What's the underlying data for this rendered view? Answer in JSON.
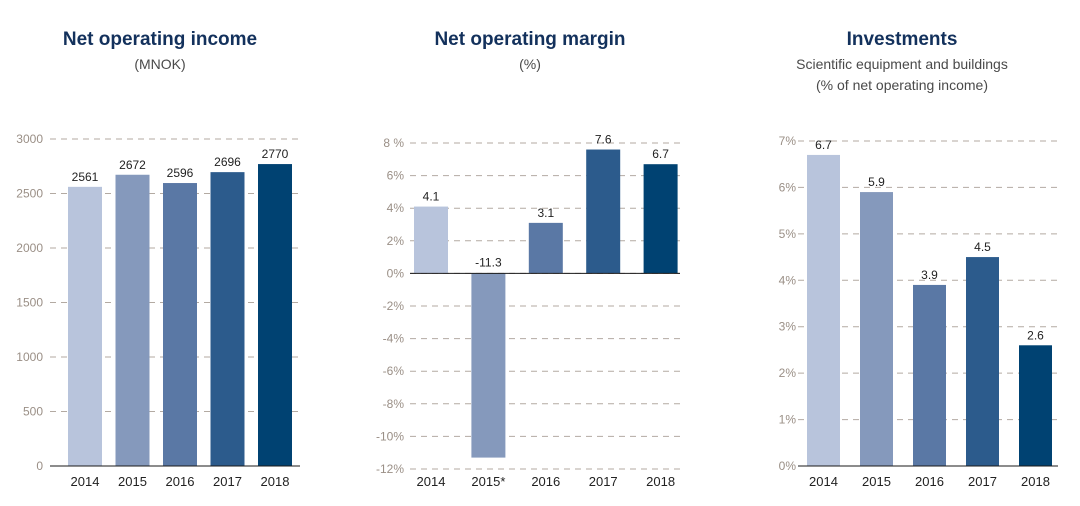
{
  "colors": {
    "year_2014": "#b8c4dc",
    "year_2015": "#8599bc",
    "year_2016": "#5a78a5",
    "year_2017": "#2c5b8c",
    "year_2018": "#004272",
    "grid": "#b3aaa2",
    "title": "#13315c"
  },
  "chart_data": [
    {
      "type": "bar",
      "title": "Net operating income",
      "subtitle": "(MNOK)",
      "categories": [
        "2014",
        "2015",
        "2016",
        "2017",
        "2018"
      ],
      "values": [
        2561,
        2672,
        2596,
        2696,
        2770
      ],
      "value_labels": [
        "2561",
        "2672",
        "2596",
        "2696",
        "2770"
      ],
      "ylim": [
        0,
        3000
      ],
      "yticks": [
        0,
        500,
        1000,
        1500,
        2000,
        2500,
        3000
      ],
      "ytick_labels": [
        "0",
        "500",
        "1000",
        "1500",
        "2000",
        "2500",
        "3000"
      ],
      "grid": true
    },
    {
      "type": "bar",
      "title": "Net operating margin",
      "subtitle": "(%)",
      "categories": [
        "2014",
        "2015*",
        "2016",
        "2017",
        "2018"
      ],
      "values": [
        4.1,
        -11.3,
        3.1,
        7.6,
        6.7
      ],
      "value_labels": [
        "4.1",
        "-11.3",
        "3.1",
        "7.6",
        "6.7"
      ],
      "ylim": [
        -12,
        8
      ],
      "yticks": [
        -12,
        -10,
        -8,
        -6,
        -4,
        -2,
        0,
        2,
        4,
        6,
        8
      ],
      "ytick_labels": [
        "-12%",
        "-10%",
        "-8%",
        "-6%",
        "-4%",
        "-2%",
        "0%",
        "2%",
        "4%",
        "6%",
        "8 %"
      ],
      "grid": true
    },
    {
      "type": "bar",
      "title": "Investments",
      "subtitle": "Scientific equipment and buildings",
      "subtitle2": "(% of net operating income)",
      "categories": [
        "2014",
        "2015",
        "2016",
        "2017",
        "2018"
      ],
      "values": [
        6.7,
        5.9,
        3.9,
        4.5,
        2.6
      ],
      "value_labels": [
        "6.7",
        "5.9",
        "3.9",
        "4.5",
        "2.6"
      ],
      "ylim": [
        0,
        7
      ],
      "yticks": [
        0,
        1,
        2,
        3,
        4,
        5,
        6,
        7
      ],
      "ytick_labels": [
        "0%",
        "1%",
        "2%",
        "3%",
        "4%",
        "5%",
        "6%",
        "7%"
      ],
      "grid": true
    }
  ]
}
